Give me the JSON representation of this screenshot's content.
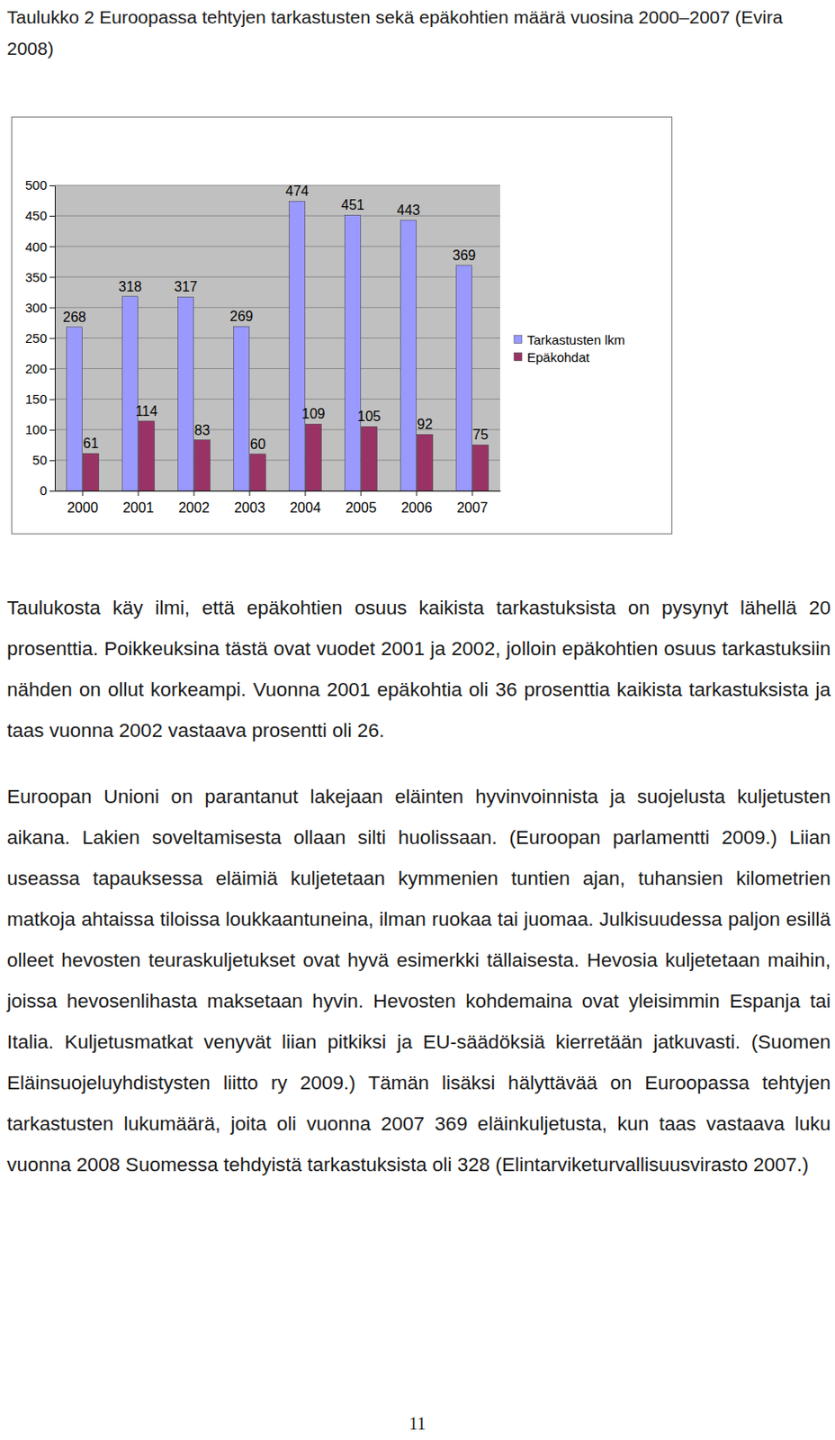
{
  "caption": "Taulukko 2 Euroopassa tehtyjen tarkastusten sekä epäkohtien määrä vuosina 2000–2007 (Evira 2008)",
  "chart_data": {
    "type": "bar",
    "categories": [
      "2000",
      "2001",
      "2002",
      "2003",
      "2004",
      "2005",
      "2006",
      "2007"
    ],
    "series": [
      {
        "name": "Tarkastusten lkm",
        "color": "#9999ff",
        "values": [
          268,
          318,
          317,
          269,
          474,
          451,
          443,
          369
        ]
      },
      {
        "name": "Epäkohdat",
        "color": "#993366",
        "values": [
          61,
          114,
          83,
          60,
          109,
          105,
          92,
          75
        ]
      }
    ],
    "ylim": [
      0,
      500
    ],
    "yticks": [
      0,
      50,
      100,
      150,
      200,
      250,
      300,
      350,
      400,
      450,
      500
    ],
    "grid": true,
    "legend": "right",
    "data_labels": true
  },
  "paragraphs": [
    "Taulukosta käy ilmi, että epäkohtien osuus kaikista tarkastuksista on pysynyt lähellä 20 prosenttia. Poikkeuksina tästä ovat vuodet 2001 ja 2002, jolloin epäkohtien osuus tarkastuksiin nähden on ollut korkeampi. Vuonna 2001 epäkohtia oli 36 prosenttia kaikista tarkastuksista ja taas vuonna 2002 vastaava prosentti oli 26.",
    "Euroopan Unioni on parantanut lakejaan eläinten hyvinvoinnista ja suojelusta kuljetusten aikana. Lakien soveltamisesta ollaan silti huolissaan. (Euroopan parlamentti 2009.) Liian useassa tapauksessa eläimiä kuljetetaan kymmenien tuntien ajan, tuhansien kilometrien matkoja ahtaissa tiloissa loukkaantuneina, ilman ruokaa tai juomaa. Julkisuudessa paljon esillä olleet hevosten teuraskuljetukset ovat hyvä esimerkki tällaisesta. Hevosia kuljetetaan maihin, joissa hevosenlihasta maksetaan hyvin. Hevosten kohdemaina ovat yleisimmin Espanja tai Italia. Kuljetusmatkat venyvät liian pitkiksi ja EU-säädöksiä kierretään jatkuvasti. (Suomen Eläinsuojeluyhdistysten liitto ry 2009.) Tämän lisäksi hälyttävää on Euroopassa tehtyjen tarkastusten lukumäärä, joita oli vuonna 2007 369 eläinkuljetusta, kun taas vastaava luku vuonna 2008 Suomessa tehdyistä tarkastuksista oli 328 (Elintarviketurvallisuusvirasto 2007.)"
  ],
  "page_number": 11
}
